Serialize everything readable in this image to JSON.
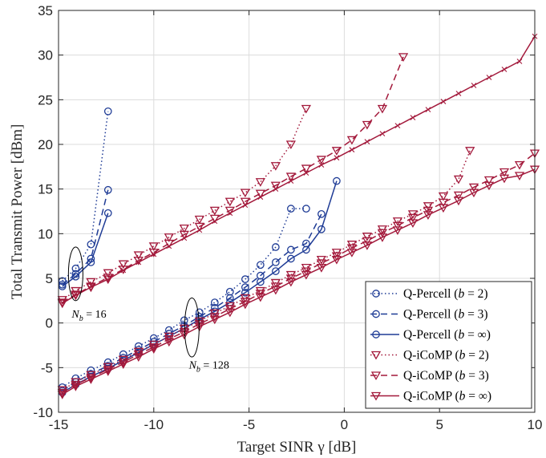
{
  "chart_data": {
    "type": "line",
    "title": "",
    "xlabel": "Target SINR γ [dB]",
    "ylabel": "Total Transmit Power [dBm]",
    "xlim": [
      -15,
      10
    ],
    "ylim": [
      -10,
      35
    ],
    "xticks": [
      -15,
      -10,
      -5,
      0,
      5,
      10
    ],
    "xtick_labels": [
      "-15",
      "-10",
      "-5",
      "0",
      "5",
      "10"
    ],
    "yticks": [
      -10,
      -5,
      0,
      5,
      10,
      15,
      20,
      25,
      30,
      35
    ],
    "ytick_labels": [
      "-10",
      "-5",
      "0",
      "5",
      "10",
      "15",
      "20",
      "25",
      "30",
      "35"
    ],
    "grid": true,
    "legend_position": "bottom-right",
    "legend": [
      {
        "label": "Q-Percell (b = 2)",
        "color": "#1f3c96",
        "dash": "dotted",
        "marker": "circle"
      },
      {
        "label": "Q-Percell (b = 3)",
        "color": "#1f3c96",
        "dash": "dashed",
        "marker": "circle"
      },
      {
        "label": "Q-Percell (b = ∞)",
        "color": "#1f3c96",
        "dash": "solid",
        "marker": "circle"
      },
      {
        "label": "Q-iCoMP (b = 2)",
        "color": "#a3193b",
        "dash": "dotted",
        "marker": "triangle-down"
      },
      {
        "label": "Q-iCoMP (b = 3)",
        "color": "#a3193b",
        "dash": "dashed",
        "marker": "triangle-down"
      },
      {
        "label": "Q-iCoMP (b = ∞)",
        "color": "#a3193b",
        "dash": "solid",
        "marker": "triangle-down"
      }
    ],
    "annotations": [
      {
        "label": "N_b = 16",
        "text_at": [
          -13.4,
          0.6
        ],
        "ellipse_center": [
          -14.1,
          5.5
        ],
        "ellipse_radii_data": [
          0.38,
          3.0
        ]
      },
      {
        "label": "N_b = 128",
        "text_at": [
          -7.1,
          -5.1
        ],
        "ellipse_center": [
          -8.0,
          -0.5
        ],
        "ellipse_radii_data": [
          0.38,
          3.3
        ]
      }
    ],
    "series": [
      {
        "group": "Nb16",
        "style": "percell-2",
        "x": [
          -14.8,
          -14.1,
          -13.3,
          -12.4
        ],
        "y": [
          4.7,
          6.1,
          8.8,
          23.7
        ]
      },
      {
        "group": "Nb16",
        "style": "percell-3",
        "x": [
          -14.8,
          -14.1,
          -13.3,
          -12.4
        ],
        "y": [
          4.3,
          5.5,
          7.2,
          14.9
        ]
      },
      {
        "group": "Nb16",
        "style": "percell-inf",
        "x": [
          -14.8,
          -14.1,
          -13.3,
          -12.4
        ],
        "y": [
          4.1,
          5.2,
          6.8,
          12.3
        ]
      },
      {
        "group": "Nb16",
        "style": "icomp-2",
        "x": [
          -14.8,
          -14.1,
          -13.3,
          -12.4,
          -11.6,
          -10.8,
          -10.0,
          -9.2,
          -8.4,
          -7.6,
          -6.8,
          -6.0,
          -5.2,
          -4.4,
          -3.6,
          -2.8,
          -2.0
        ],
        "y": [
          2.6,
          3.6,
          4.6,
          5.6,
          6.6,
          7.6,
          8.6,
          9.6,
          10.6,
          11.6,
          12.6,
          13.6,
          14.6,
          15.8,
          17.6,
          20.0,
          24.0
        ]
      },
      {
        "group": "Nb16",
        "style": "icomp-3",
        "x": [
          -14.8,
          -14.1,
          -13.3,
          -12.4,
          -11.6,
          -10.8,
          -10.0,
          -9.2,
          -8.4,
          -7.6,
          -6.8,
          -6.0,
          -5.2,
          -4.4,
          -3.6,
          -2.8,
          -2.0,
          -1.2,
          -0.4,
          0.4,
          1.2,
          2.0,
          3.1
        ],
        "y": [
          2.3,
          3.2,
          4.1,
          5.1,
          6.0,
          7.0,
          7.9,
          8.9,
          9.9,
          10.8,
          11.7,
          12.6,
          13.6,
          14.5,
          15.4,
          16.4,
          17.3,
          18.3,
          19.3,
          20.5,
          22.2,
          24.0,
          29.8
        ]
      },
      {
        "group": "Nb16",
        "style": "icomp-inf",
        "x": [
          -14.8,
          -14.1,
          -13.3,
          -12.4,
          -11.6,
          -10.8,
          -10.0,
          -9.2,
          -8.4,
          -7.6,
          -6.8,
          -6.0,
          -5.2,
          -4.4,
          -3.6,
          -2.8,
          -2.0,
          -1.2,
          -0.4,
          0.4,
          1.2,
          2.0,
          2.8,
          3.6,
          4.4,
          5.2,
          6.0,
          6.8,
          7.6,
          8.4,
          9.2,
          10.0
        ],
        "y": [
          2.2,
          3.1,
          4.0,
          4.9,
          5.9,
          6.8,
          7.7,
          8.6,
          9.5,
          10.4,
          11.4,
          12.3,
          13.2,
          14.1,
          15.0,
          15.9,
          16.8,
          17.7,
          18.5,
          19.4,
          20.3,
          21.2,
          22.1,
          23.0,
          23.9,
          24.8,
          25.7,
          26.6,
          27.5,
          28.4,
          29.3,
          32.1
        ]
      },
      {
        "group": "Nb128",
        "style": "percell-2",
        "x": [
          -14.8,
          -14.1,
          -13.3,
          -12.4,
          -11.6,
          -10.8,
          -10.0,
          -9.2,
          -8.4,
          -7.6,
          -6.8,
          -6.0,
          -5.2,
          -4.4,
          -3.6,
          -2.8,
          -2.0
        ],
        "y": [
          -7.2,
          -6.2,
          -5.3,
          -4.4,
          -3.5,
          -2.6,
          -1.7,
          -0.8,
          0.3,
          1.2,
          2.3,
          3.5,
          4.9,
          6.5,
          8.5,
          12.8,
          12.8
        ]
      },
      {
        "group": "Nb128",
        "style": "percell-3",
        "x": [
          -14.8,
          -14.1,
          -13.3,
          -12.4,
          -11.6,
          -10.8,
          -10.0,
          -9.2,
          -8.4,
          -7.6,
          -6.8,
          -6.0,
          -5.2,
          -4.4,
          -3.6,
          -2.8,
          -2.0,
          -1.2
        ],
        "y": [
          -7.6,
          -6.6,
          -5.7,
          -4.8,
          -3.9,
          -3.0,
          -2.1,
          -1.2,
          -0.3,
          0.7,
          1.7,
          2.8,
          4.0,
          5.3,
          6.8,
          8.2,
          8.9,
          12.2
        ]
      },
      {
        "group": "Nb128",
        "style": "percell-inf",
        "x": [
          -14.8,
          -14.1,
          -13.3,
          -12.4,
          -11.6,
          -10.8,
          -10.0,
          -9.2,
          -8.4,
          -7.6,
          -6.8,
          -6.0,
          -5.2,
          -4.4,
          -3.6,
          -2.8,
          -2.0,
          -1.2,
          -0.4
        ],
        "y": [
          -7.8,
          -6.9,
          -6.0,
          -5.1,
          -4.2,
          -3.3,
          -2.4,
          -1.5,
          -0.6,
          0.4,
          1.3,
          2.3,
          3.4,
          4.6,
          5.8,
          7.2,
          8.2,
          10.5,
          15.9
        ]
      },
      {
        "group": "Nb128",
        "style": "icomp-2",
        "x": [
          -14.8,
          -14.1,
          -13.3,
          -12.4,
          -11.6,
          -10.8,
          -10.0,
          -9.2,
          -8.4,
          -7.6,
          -6.8,
          -6.0,
          -5.2,
          -4.4,
          -3.6,
          -2.8,
          -2.0,
          -1.2,
          -0.4,
          0.4,
          1.2,
          2.0,
          2.8,
          3.6,
          4.4,
          5.2,
          6.0,
          6.6
        ],
        "y": [
          -7.5,
          -6.6,
          -5.8,
          -4.9,
          -4.1,
          -3.2,
          -2.4,
          -1.5,
          -0.6,
          0.2,
          1.1,
          1.9,
          2.8,
          3.6,
          4.5,
          5.4,
          6.2,
          7.1,
          7.9,
          8.8,
          9.7,
          10.5,
          11.4,
          12.2,
          13.1,
          14.2,
          16.1,
          19.3
        ]
      },
      {
        "group": "Nb128",
        "style": "icomp-3",
        "x": [
          -14.8,
          -14.1,
          -13.3,
          -12.4,
          -11.6,
          -10.8,
          -10.0,
          -9.2,
          -8.4,
          -7.6,
          -6.8,
          -6.0,
          -5.2,
          -4.4,
          -3.6,
          -2.8,
          -2.0,
          -1.2,
          -0.4,
          0.4,
          1.2,
          2.0,
          2.8,
          3.6,
          4.4,
          5.2,
          6.0,
          6.8,
          7.6,
          8.4,
          9.2,
          10.0
        ],
        "y": [
          -7.8,
          -6.9,
          -6.1,
          -5.2,
          -4.4,
          -3.5,
          -2.7,
          -1.8,
          -1.0,
          -0.1,
          0.7,
          1.6,
          2.4,
          3.3,
          4.1,
          5.0,
          5.8,
          6.7,
          7.5,
          8.4,
          9.2,
          10.1,
          10.9,
          11.8,
          12.6,
          13.5,
          14.3,
          15.2,
          16.0,
          16.9,
          17.7,
          19.0
        ]
      },
      {
        "group": "Nb128",
        "style": "icomp-inf",
        "x": [
          -14.8,
          -14.1,
          -13.3,
          -12.4,
          -11.6,
          -10.8,
          -10.0,
          -9.2,
          -8.4,
          -7.6,
          -6.8,
          -6.0,
          -5.2,
          -4.4,
          -3.6,
          -2.8,
          -2.0,
          -1.2,
          -0.4,
          0.4,
          1.2,
          2.0,
          2.8,
          3.6,
          4.4,
          5.2,
          6.0,
          6.8,
          7.6,
          8.4,
          9.2,
          10.0
        ],
        "y": [
          -8.0,
          -7.1,
          -6.3,
          -5.4,
          -4.6,
          -3.8,
          -2.9,
          -2.1,
          -1.3,
          -0.4,
          0.4,
          1.2,
          2.1,
          2.9,
          3.7,
          4.6,
          5.4,
          6.2,
          7.1,
          7.9,
          8.7,
          9.6,
          10.4,
          11.2,
          12.1,
          12.9,
          13.7,
          14.6,
          15.4,
          16.2,
          16.5,
          17.2
        ]
      }
    ]
  }
}
